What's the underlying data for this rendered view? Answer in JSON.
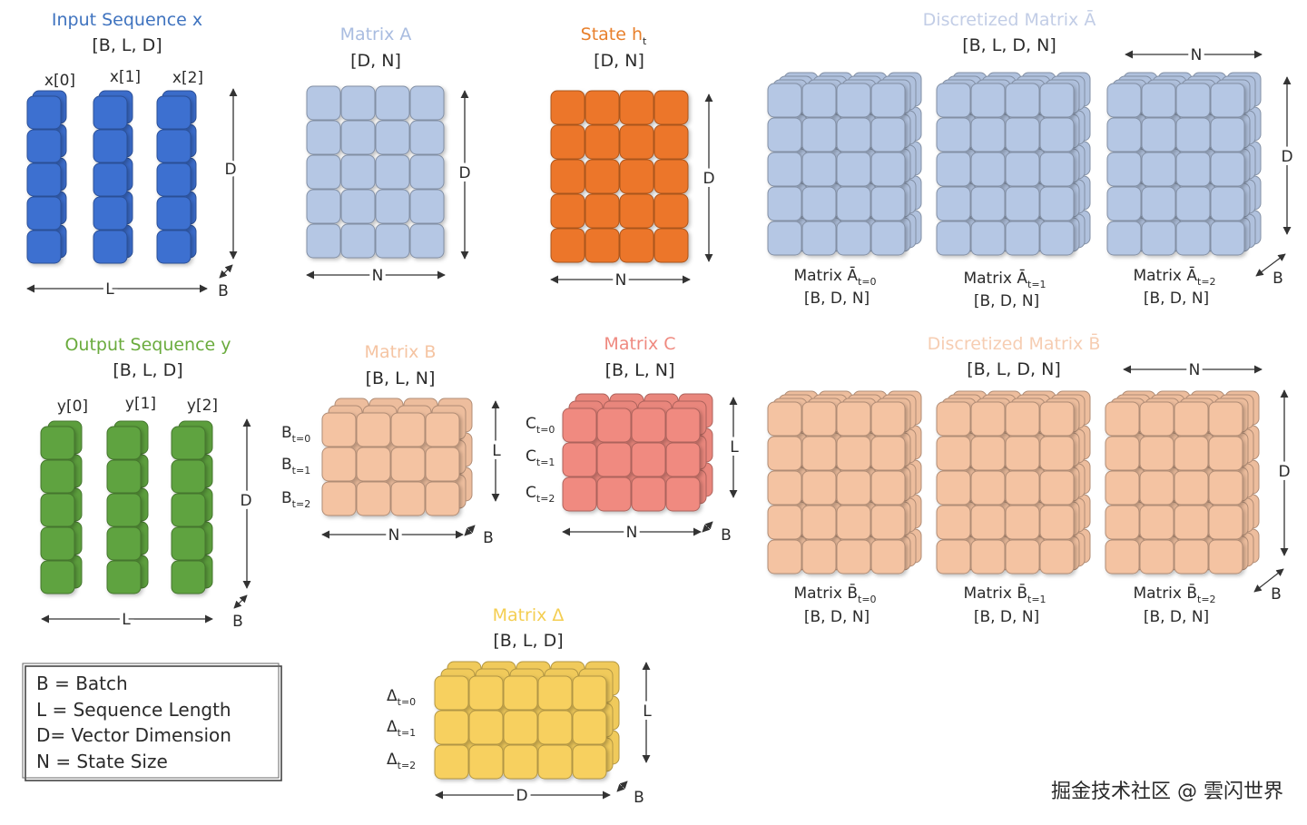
{
  "colors": {
    "input": "#3d6fd0",
    "matrix_a": "#b5c7e4",
    "state": "#ec7629",
    "output": "#5fa33f",
    "matrix_b": "#f4c3a2",
    "matrix_c": "#f08a80",
    "delta": "#f7d05e",
    "title_input": "#3f73bf",
    "title_matrix_a": "#a9bce0",
    "title_state": "#e8802c",
    "title_output": "#6aab3d",
    "title_matrix_b": "#f5c4a2",
    "title_matrix_c": "#ef8a80",
    "title_delta": "#f4ce52",
    "title_disc_a": "#c2cde6",
    "title_disc_b": "#f6cdb2"
  },
  "input_sequence": {
    "title": "Input Sequence x",
    "shape": "[B, L, D]",
    "items": [
      "x[0]",
      "x[1]",
      "x[2]"
    ],
    "dim_vertical": "D",
    "dim_horizontal": "L",
    "dim_depth": "B"
  },
  "matrix_a": {
    "title": "Matrix A",
    "shape": "[D, N]",
    "dim_vertical": "D",
    "dim_horizontal": "N"
  },
  "state": {
    "title_main": "State h",
    "title_sub": "t",
    "shape": "[D, N]",
    "dim_vertical": "D",
    "dim_horizontal": "N"
  },
  "disc_a": {
    "title": "Discretized Matrix Ā",
    "shape": "[B, L, D, N]",
    "dim_n": "N",
    "dim_d": "D",
    "dim_b": "B",
    "items": [
      {
        "label_main": "Matrix Ā",
        "label_sub": "t=0",
        "shape": "[B, D, N]"
      },
      {
        "label_main": "Matrix Ā",
        "label_sub": "t=1",
        "shape": "[B, D, N]"
      },
      {
        "label_main": "Matrix Ā",
        "label_sub": "t=2",
        "shape": "[B, D, N]"
      }
    ]
  },
  "output_sequence": {
    "title": "Output Sequence y",
    "shape": "[B, L, D]",
    "items": [
      "y[0]",
      "y[1]",
      "y[2]"
    ],
    "dim_vertical": "D",
    "dim_horizontal": "L",
    "dim_depth": "B"
  },
  "matrix_b": {
    "title": "Matrix B",
    "shape": "[B, L, N]",
    "row_labels": [
      {
        "main": "B",
        "sub": "t=0"
      },
      {
        "main": "B",
        "sub": "t=1"
      },
      {
        "main": "B",
        "sub": "t=2"
      }
    ],
    "dim_vertical": "L",
    "dim_horizontal": "N",
    "dim_depth": "B"
  },
  "matrix_c": {
    "title": "Matrix C",
    "shape": "[B, L, N]",
    "row_labels": [
      {
        "main": "C",
        "sub": "t=0"
      },
      {
        "main": "C",
        "sub": "t=1"
      },
      {
        "main": "C",
        "sub": "t=2"
      }
    ],
    "dim_vertical": "L",
    "dim_horizontal": "N",
    "dim_depth": "B"
  },
  "disc_b": {
    "title": "Discretized Matrix B̄",
    "shape": "[B, L, D, N]",
    "dim_n": "N",
    "dim_d": "D",
    "dim_b": "B",
    "items": [
      {
        "label_main": "Matrix B̄",
        "label_sub": "t=0",
        "shape": "[B, D, N]"
      },
      {
        "label_main": "Matrix B̄",
        "label_sub": "t=1",
        "shape": "[B, D, N]"
      },
      {
        "label_main": "Matrix B̄",
        "label_sub": "t=2",
        "shape": "[B, D, N]"
      }
    ]
  },
  "matrix_delta": {
    "title": "Matrix Δ",
    "shape": "[B, L, D]",
    "row_labels": [
      {
        "main": "Δ",
        "sub": "t=0"
      },
      {
        "main": "Δ",
        "sub": "t=1"
      },
      {
        "main": "Δ",
        "sub": "t=2"
      }
    ],
    "dim_vertical": "L",
    "dim_horizontal": "D",
    "dim_depth": "B"
  },
  "legend": {
    "lines": [
      "B = Batch",
      "L = Sequence Length",
      "D= Vector Dimension",
      "N = State Size"
    ]
  },
  "watermark": "掘金技术社区 @ 雲闪世界"
}
